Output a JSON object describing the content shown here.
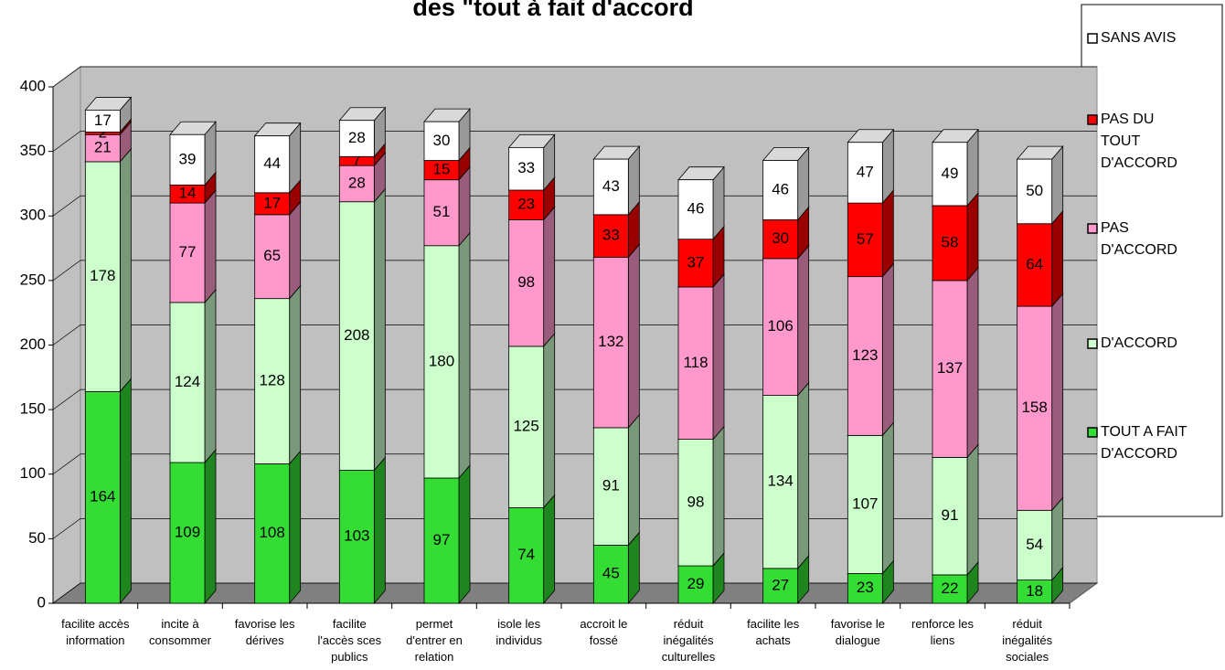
{
  "chart_data": {
    "type": "bar3d_stacked",
    "title": "des \"tout à fait d'accord",
    "categories": [
      "facilite accès\ninformation",
      "incite à\nconsommer",
      "favorise les\ndérives",
      "facilite\nl'accès sces\npublics",
      "permet\nd'entrer en\nrelation",
      "isole les\nindividus",
      "accroit le\nfossé",
      "réduit\ninégalités\nculturelles",
      "facilite les\nachats",
      "favorise le\ndialogue",
      "renforce les\nliens",
      "réduit\ninégalités\nsociales"
    ],
    "series": [
      {
        "name": "TOUT A FAIT\nD'ACCORD",
        "color": "#33dd33",
        "values": [
          164,
          109,
          108,
          103,
          97,
          74,
          45,
          29,
          27,
          23,
          22,
          18
        ]
      },
      {
        "name": "D'ACCORD",
        "color": "#ccffcc",
        "values": [
          178,
          124,
          128,
          208,
          180,
          125,
          91,
          98,
          134,
          107,
          91,
          54
        ]
      },
      {
        "name": "PAS\nD'ACCORD",
        "color": "#ff99cc",
        "values": [
          21,
          77,
          65,
          28,
          51,
          98,
          132,
          118,
          106,
          123,
          137,
          158
        ]
      },
      {
        "name": "PAS DU\nTOUT\nD'ACCORD",
        "color": "#ff0000",
        "values": [
          2,
          14,
          17,
          7,
          15,
          23,
          33,
          37,
          30,
          57,
          58,
          64
        ]
      },
      {
        "name": "SANS AVIS",
        "color": "#ffffff",
        "values": [
          17,
          39,
          44,
          28,
          30,
          33,
          43,
          46,
          46,
          47,
          49,
          50
        ]
      }
    ],
    "ylim": [
      0,
      400
    ],
    "yticks": [
      0,
      50,
      100,
      150,
      200,
      250,
      300,
      350,
      400
    ],
    "grid": true
  }
}
